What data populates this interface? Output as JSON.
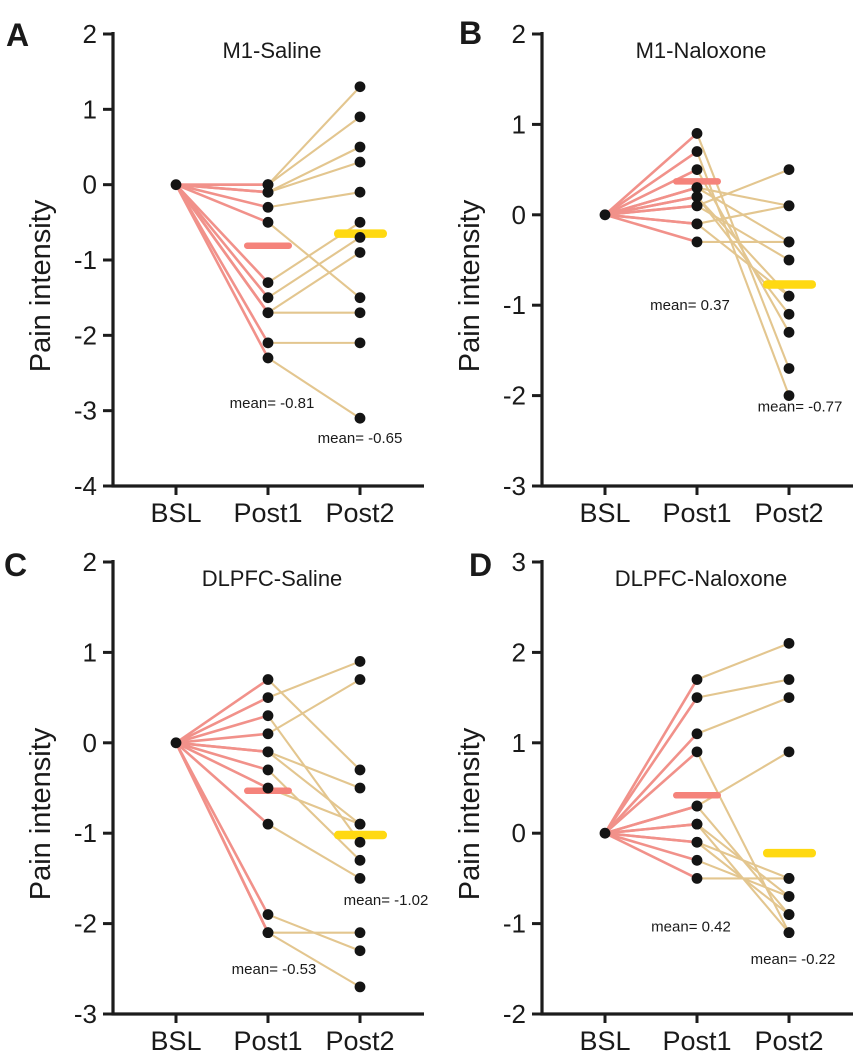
{
  "figure": {
    "ylabel": "Pain intensity",
    "categories": [
      "BSL",
      "Post1",
      "Post2"
    ]
  },
  "colors": {
    "baseline_segment": "#f1918a",
    "followup_segment": "#e3c68f",
    "mean_post1_bar": "#f5837b",
    "mean_post2_bar": "#ffd911",
    "point": "#141414",
    "axis": "#1c1c1c",
    "text": "#1a1a1a"
  },
  "chart_data": [
    {
      "type": "line",
      "panel_label": "A",
      "title": "M1-Saline",
      "ylabel": "Pain intensity",
      "xlabel": "",
      "categories": [
        "BSL",
        "Post1",
        "Post2"
      ],
      "ylim": [
        -4,
        2
      ],
      "yticks": [
        2,
        1,
        0,
        -1,
        -2,
        -3,
        -4
      ],
      "baseline_value": 0,
      "subjects": [
        [
          0.0,
          1.3
        ],
        [
          0.0,
          0.9
        ],
        [
          -0.1,
          0.5
        ],
        [
          -0.1,
          0.3
        ],
        [
          -0.3,
          -0.1
        ],
        [
          -0.5,
          -1.5
        ],
        [
          -1.3,
          -0.5
        ],
        [
          -1.5,
          -0.7
        ],
        [
          -1.7,
          -0.9
        ],
        [
          -1.7,
          -1.7
        ],
        [
          -2.1,
          -2.1
        ],
        [
          -2.3,
          -3.1
        ]
      ],
      "mean_post1": -0.81,
      "mean_post2": -0.65,
      "annotations": [
        {
          "text": "mean= -0.81",
          "col": "Post1",
          "dx": 4,
          "y": -2.9
        },
        {
          "text": "mean= -0.65",
          "col": "Post2",
          "dx": 0,
          "y": -3.36
        }
      ]
    },
    {
      "type": "line",
      "panel_label": "B",
      "title": "M1-Naloxone",
      "ylabel": "Pain intensity",
      "xlabel": "",
      "categories": [
        "BSL",
        "Post1",
        "Post2"
      ],
      "ylim": [
        -3,
        2
      ],
      "yticks": [
        2,
        1,
        0,
        -1,
        -2,
        -3
      ],
      "baseline_value": 0,
      "subjects": [
        [
          0.9,
          -1.7
        ],
        [
          0.7,
          -2.0
        ],
        [
          0.5,
          -1.3
        ],
        [
          0.3,
          0.1
        ],
        [
          0.3,
          -0.3
        ],
        [
          0.2,
          -0.9
        ],
        [
          0.2,
          -1.1
        ],
        [
          0.1,
          0.5
        ],
        [
          0.1,
          -0.5
        ],
        [
          -0.1,
          0.1
        ],
        [
          -0.1,
          -0.9
        ],
        [
          -0.3,
          -0.3
        ]
      ],
      "mean_post1": 0.37,
      "mean_post2": -0.77,
      "annotations": [
        {
          "text": "mean= 0.37",
          "col": "Post1",
          "dx": -7,
          "y": -1.0
        },
        {
          "text": "mean= -0.77",
          "col": "Post2",
          "dx": 11,
          "y": -2.12
        }
      ]
    },
    {
      "type": "line",
      "panel_label": "C",
      "title": "DLPFC-Saline",
      "ylabel": "Pain intensity",
      "xlabel": "",
      "categories": [
        "BSL",
        "Post1",
        "Post2"
      ],
      "ylim": [
        -3,
        2
      ],
      "yticks": [
        2,
        1,
        0,
        -1,
        -2,
        -3
      ],
      "baseline_value": 0,
      "subjects": [
        [
          0.7,
          -0.3
        ],
        [
          0.5,
          0.9
        ],
        [
          0.3,
          -1.1
        ],
        [
          0.1,
          0.7
        ],
        [
          -0.1,
          -0.5
        ],
        [
          -0.1,
          -0.9
        ],
        [
          -0.3,
          -1.3
        ],
        [
          -0.5,
          -0.9
        ],
        [
          -0.9,
          -1.5
        ],
        [
          -1.9,
          -2.3
        ],
        [
          -2.1,
          -2.1
        ],
        [
          -2.1,
          -2.7
        ]
      ],
      "mean_post1": -0.53,
      "mean_post2": -1.02,
      "annotations": [
        {
          "text": "mean= -0.53",
          "col": "Post1",
          "dx": 6,
          "y": -2.5
        },
        {
          "text": "mean= -1.02",
          "col": "Post2",
          "dx": 26,
          "y": -1.74
        }
      ]
    },
    {
      "type": "line",
      "panel_label": "D",
      "title": "DLPFC-Naloxone",
      "ylabel": "Pain intensity",
      "xlabel": "",
      "categories": [
        "BSL",
        "Post1",
        "Post2"
      ],
      "ylim": [
        -2,
        3
      ],
      "yticks": [
        3,
        2,
        1,
        0,
        -1,
        -2
      ],
      "baseline_value": 0,
      "subjects": [
        [
          1.7,
          2.1
        ],
        [
          1.5,
          1.7
        ],
        [
          1.1,
          1.5
        ],
        [
          0.9,
          -1.1
        ],
        [
          0.3,
          0.9
        ],
        [
          0.3,
          -0.9
        ],
        [
          0.1,
          -0.7
        ],
        [
          0.1,
          -1.1
        ],
        [
          -0.1,
          -0.5
        ],
        [
          -0.1,
          -0.9
        ],
        [
          -0.3,
          -0.7
        ],
        [
          -0.5,
          -0.5
        ]
      ],
      "mean_post1": 0.42,
      "mean_post2": -0.22,
      "annotations": [
        {
          "text": "mean= 0.42",
          "col": "Post1",
          "dx": -6,
          "y": -1.03
        },
        {
          "text": "mean= -0.22",
          "col": "Post2",
          "dx": 4,
          "y": -1.39
        }
      ]
    }
  ]
}
